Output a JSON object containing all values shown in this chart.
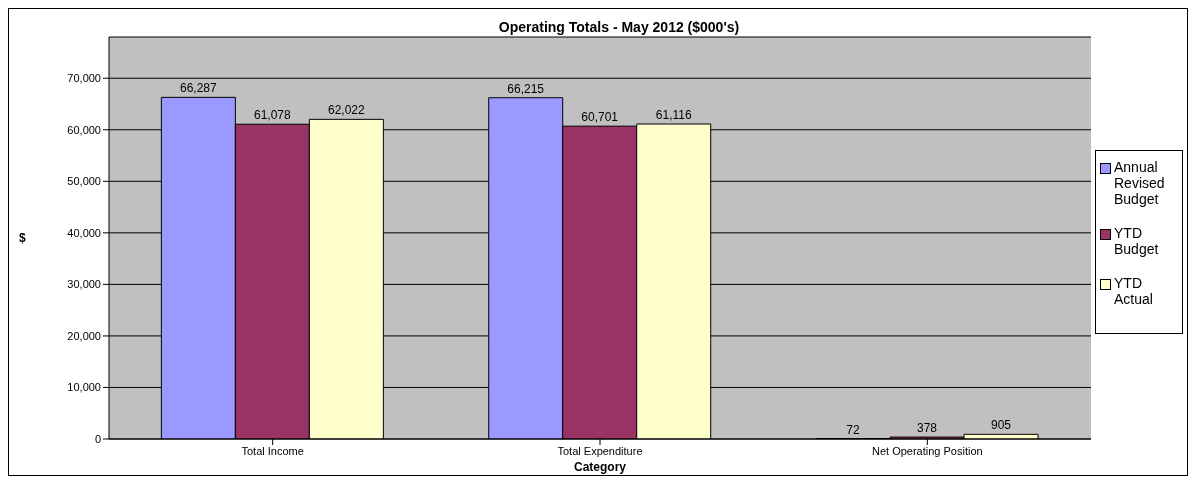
{
  "chart_data": {
    "type": "bar",
    "title": "Operating Totals - May 2012 ($000's)",
    "xlabel": "Category",
    "ylabel": "$",
    "categories": [
      "Total Income",
      "Total Expenditure",
      "Net Operating Position"
    ],
    "series": [
      {
        "name": "Annual Revised Budget",
        "color": "#9999ff",
        "values": [
          66287,
          66215,
          72
        ],
        "value_labels": [
          "66,287",
          "66,215",
          "72"
        ]
      },
      {
        "name": "YTD Budget",
        "color": "#993366",
        "values": [
          61078,
          60701,
          378
        ],
        "value_labels": [
          "61,078",
          "60,701",
          "378"
        ]
      },
      {
        "name": "YTD Actual",
        "color": "#ffffcc",
        "values": [
          62022,
          61116,
          905
        ],
        "value_labels": [
          "62,022",
          "61,116",
          "905"
        ]
      }
    ],
    "ylim": [
      0,
      78000
    ],
    "yticks": [
      0,
      {
        "value": 10000,
        "label": "10,000"
      },
      {
        "value": 20000,
        "label": "20,000"
      },
      {
        "value": 30000,
        "label": "30,000"
      },
      {
        "value": 40000,
        "label": "40,000"
      },
      {
        "value": 50000,
        "label": "50,000"
      },
      {
        "value": 60000,
        "label": "60,000"
      },
      {
        "value": 70000,
        "label": "70,000"
      }
    ],
    "grid": "y",
    "legend": "right"
  }
}
